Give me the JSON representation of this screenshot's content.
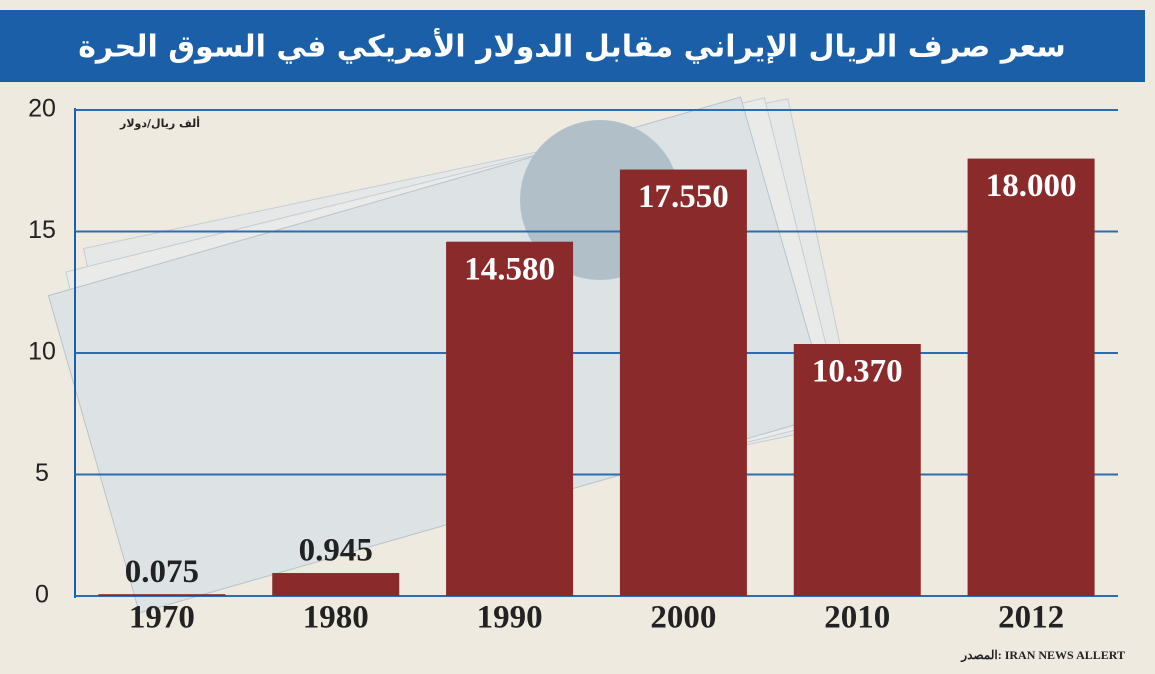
{
  "chart_data": {
    "type": "bar",
    "title": "سعر صرف الريال الإيراني مقابل الدولار الأمريكي في السوق الحرة",
    "y_axis_label": "ألف ريال/دولار",
    "categories": [
      "1970",
      "1980",
      "1990",
      "2000",
      "2010",
      "2012"
    ],
    "values": [
      0.075,
      0.945,
      14.58,
      17.55,
      10.37,
      18
    ],
    "value_labels": [
      "0.075",
      "0.945",
      "14.580",
      "17.550",
      "10.370",
      "18.000"
    ],
    "color": "#8a2a2b",
    "ylim": [
      0,
      20
    ],
    "yticks": [
      0,
      5,
      10,
      15,
      20
    ],
    "grid": true,
    "source_label": "المصدر:",
    "source": "IRAN NEWS ALLERT"
  }
}
